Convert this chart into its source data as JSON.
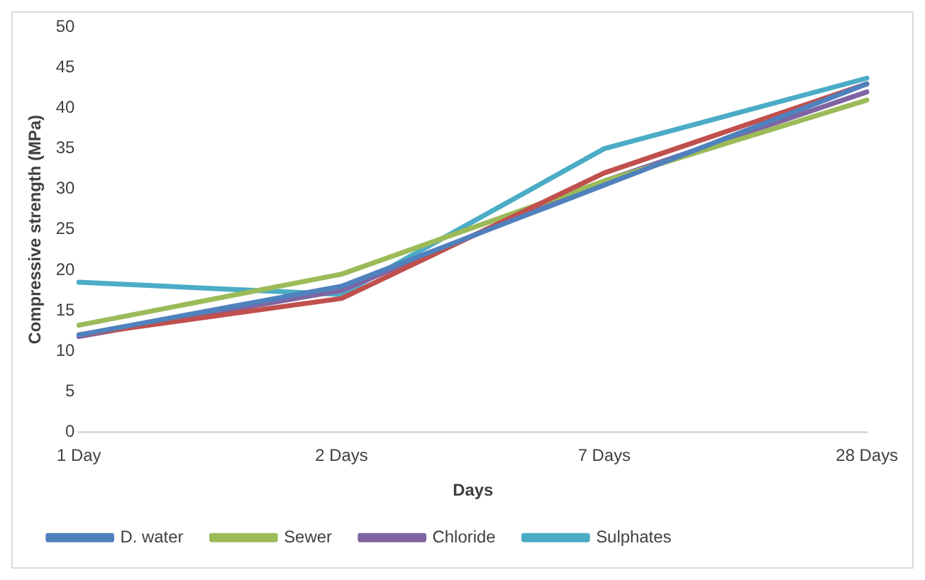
{
  "chart_data": {
    "type": "line",
    "xlabel": "Days",
    "ylabel": "Compressive strength (MPa)",
    "categories": [
      "1 Day",
      "2 Days",
      "7 Days",
      "28 Days"
    ],
    "series": [
      {
        "name": "D. water",
        "color": "#4f81bd",
        "values": [
          12,
          18,
          30.5,
          43
        ]
      },
      {
        "color": "#c0504d",
        "values": [
          12,
          16.5,
          32,
          43
        ]
      },
      {
        "name": "Sewer",
        "color": "#9bbb59",
        "values": [
          13.2,
          19.5,
          31,
          41
        ]
      },
      {
        "name": "Chloride",
        "color": "#8064a2",
        "values": [
          11.8,
          17.5,
          31,
          42
        ]
      },
      {
        "name": "Sulphates",
        "color": "#4bacc6",
        "values": [
          18.5,
          17,
          35,
          43.7
        ]
      }
    ],
    "ylim": [
      0,
      50
    ],
    "yticks": [
      0,
      5,
      10,
      15,
      20,
      25,
      30,
      35,
      40,
      45,
      50
    ],
    "grid": false,
    "legend": "bottom",
    "marker": "none",
    "line_style": "solid"
  }
}
